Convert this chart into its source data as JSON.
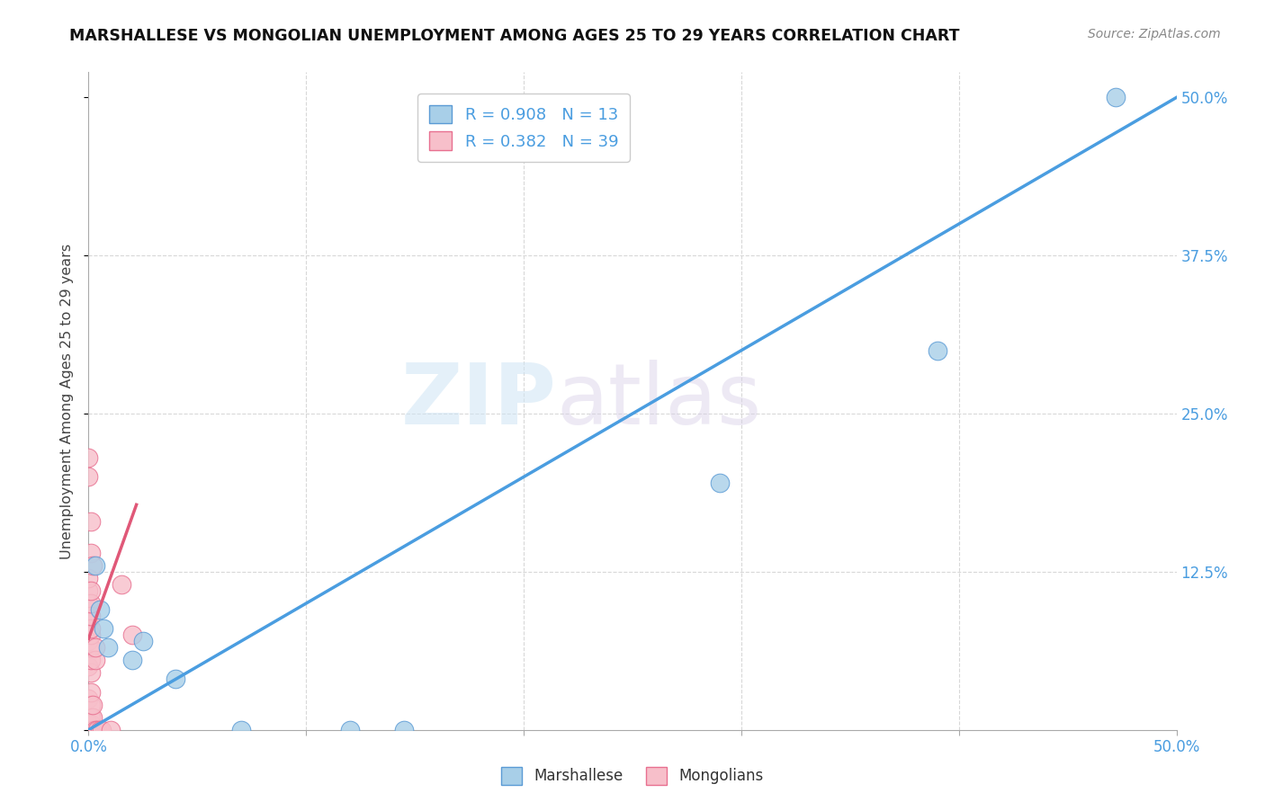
{
  "title": "MARSHALLESE VS MONGOLIAN UNEMPLOYMENT AMONG AGES 25 TO 29 YEARS CORRELATION CHART",
  "source": "Source: ZipAtlas.com",
  "ylabel": "Unemployment Among Ages 25 to 29 years",
  "xlim": [
    0,
    0.5
  ],
  "ylim": [
    0,
    0.52
  ],
  "xticks": [
    0.0,
    0.1,
    0.2,
    0.3,
    0.4,
    0.5
  ],
  "yticks": [
    0.0,
    0.125,
    0.25,
    0.375,
    0.5
  ],
  "xticklabels_sparse": [
    "0.0%",
    "",
    "",
    "",
    "",
    "50.0%"
  ],
  "yticklabels": [
    "",
    "12.5%",
    "25.0%",
    "37.5%",
    "50.0%"
  ],
  "watermark_zip": "ZIP",
  "watermark_atlas": "atlas",
  "blue_R": "0.908",
  "blue_N": "13",
  "pink_R": "0.382",
  "pink_N": "39",
  "blue_fill": "#a8cfe8",
  "pink_fill": "#f7bfca",
  "blue_edge": "#5b9bd5",
  "pink_edge": "#e87090",
  "blue_line": "#4a9de0",
  "pink_line": "#e05878",
  "diag_color": "#c8c8c8",
  "grid_color": "#d8d8d8",
  "blue_scatter": [
    [
      0.003,
      0.13
    ],
    [
      0.005,
      0.095
    ],
    [
      0.007,
      0.08
    ],
    [
      0.009,
      0.065
    ],
    [
      0.02,
      0.055
    ],
    [
      0.025,
      0.07
    ],
    [
      0.04,
      0.04
    ],
    [
      0.07,
      0.0
    ],
    [
      0.12,
      0.0
    ],
    [
      0.145,
      0.0
    ],
    [
      0.29,
      0.195
    ],
    [
      0.39,
      0.3
    ],
    [
      0.472,
      0.5
    ]
  ],
  "pink_scatter": [
    [
      0.0,
      0.0
    ],
    [
      0.0,
      0.005
    ],
    [
      0.0,
      0.025
    ],
    [
      0.0,
      0.05
    ],
    [
      0.0,
      0.07
    ],
    [
      0.0,
      0.085
    ],
    [
      0.0,
      0.1
    ],
    [
      0.0,
      0.11
    ],
    [
      0.0,
      0.12
    ],
    [
      0.0,
      0.2
    ],
    [
      0.0,
      0.215
    ],
    [
      0.001,
      0.0
    ],
    [
      0.001,
      0.005
    ],
    [
      0.001,
      0.01
    ],
    [
      0.001,
      0.02
    ],
    [
      0.001,
      0.03
    ],
    [
      0.001,
      0.045
    ],
    [
      0.001,
      0.055
    ],
    [
      0.001,
      0.065
    ],
    [
      0.001,
      0.075
    ],
    [
      0.001,
      0.08
    ],
    [
      0.001,
      0.09
    ],
    [
      0.001,
      0.1
    ],
    [
      0.001,
      0.11
    ],
    [
      0.001,
      0.14
    ],
    [
      0.001,
      0.165
    ],
    [
      0.002,
      0.0
    ],
    [
      0.002,
      0.01
    ],
    [
      0.002,
      0.02
    ],
    [
      0.002,
      0.13
    ],
    [
      0.003,
      0.0
    ],
    [
      0.003,
      0.055
    ],
    [
      0.003,
      0.065
    ],
    [
      0.004,
      0.0
    ],
    [
      0.005,
      0.0
    ],
    [
      0.006,
      0.0
    ],
    [
      0.01,
      0.0
    ],
    [
      0.015,
      0.115
    ],
    [
      0.02,
      0.075
    ]
  ],
  "blue_trend_x": [
    0.0,
    0.5
  ],
  "blue_trend_y": [
    0.0,
    0.5
  ],
  "pink_trend_x": [
    0.0,
    0.022
  ],
  "pink_trend_y": [
    0.072,
    0.178
  ]
}
